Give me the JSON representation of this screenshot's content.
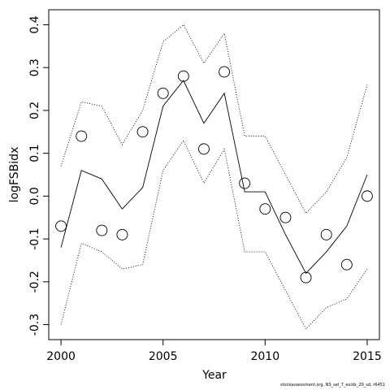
{
  "chart_data": {
    "type": "line",
    "xlabel": "Year",
    "ylabel": "logFSBidx",
    "xlim": [
      1999.4,
      2015.6
    ],
    "ylim": [
      -0.335,
      0.435
    ],
    "x_ticks": [
      2000,
      2005,
      2010,
      2015
    ],
    "y_ticks": [
      -0.3,
      -0.2,
      -0.1,
      0.0,
      0.1,
      0.2,
      0.3,
      0.4
    ],
    "x_tick_labels": [
      "2000",
      "2005",
      "2010",
      "2015"
    ],
    "y_tick_labels": [
      "-0.3",
      "-0.2",
      "-0.1",
      "0.0",
      "0.1",
      "0.2",
      "0.3",
      "0.4"
    ],
    "x": [
      2000,
      2001,
      2002,
      2003,
      2004,
      2005,
      2006,
      2007,
      2008,
      2009,
      2010,
      2011,
      2012,
      2013,
      2014,
      2015
    ],
    "series": [
      {
        "style": "open-circle",
        "values": [
          -0.07,
          0.14,
          -0.08,
          -0.09,
          0.15,
          0.24,
          0.28,
          0.11,
          0.29,
          0.03,
          -0.03,
          -0.05,
          -0.19,
          -0.09,
          -0.16,
          0.0
        ]
      },
      {
        "style": "solid-line",
        "values": [
          -0.12,
          0.06,
          0.04,
          -0.03,
          0.02,
          0.21,
          0.27,
          0.17,
          0.24,
          0.01,
          0.01,
          -0.09,
          -0.18,
          -0.13,
          -0.07,
          0.05
        ]
      },
      {
        "style": "dotted-line",
        "values": [
          0.07,
          0.22,
          0.21,
          0.12,
          0.2,
          0.36,
          0.4,
          0.31,
          0.38,
          0.14,
          0.14,
          0.05,
          -0.04,
          0.01,
          0.09,
          0.26
        ]
      },
      {
        "style": "dotted-line",
        "values": [
          -0.3,
          -0.11,
          -0.13,
          -0.17,
          -0.16,
          0.06,
          0.13,
          0.03,
          0.11,
          -0.13,
          -0.13,
          -0.22,
          -0.31,
          -0.26,
          -0.24,
          -0.17
        ]
      }
    ],
    "grid": false,
    "legend": "none"
  },
  "footnote": "stockassessment.org, NS_sel_7_exidx_20_sd, r6451"
}
